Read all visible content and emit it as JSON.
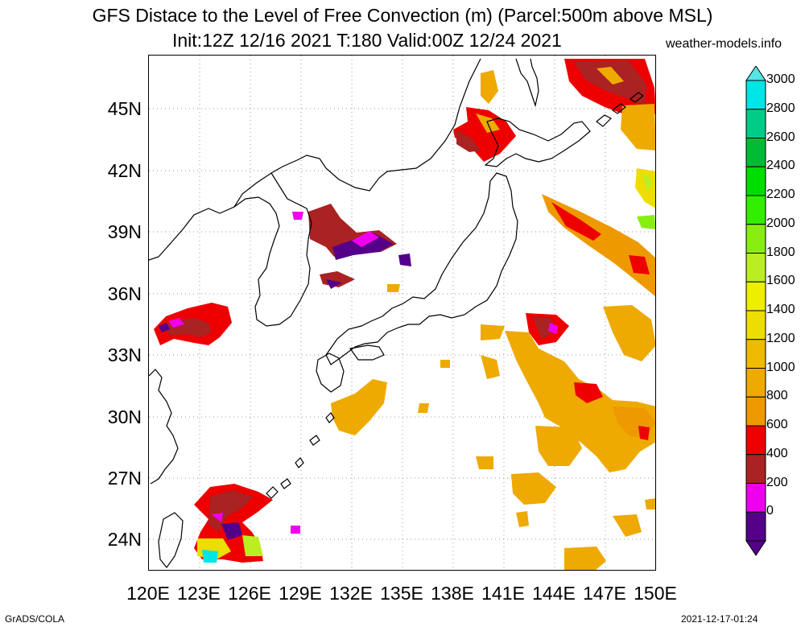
{
  "title_line1": "GFS Distace to the Level of Free Convection (m) (Parcel:500m above MSL)",
  "title_line2": "Init:12Z 12/16 2021 T:180 Valid:00Z 12/24 2021",
  "site": "weather-models.info",
  "footer_left": "GrADS/COLA",
  "footer_right": "2021-12-17-01:24",
  "lat_labels": [
    "45N",
    "42N",
    "39N",
    "36N",
    "33N",
    "30N",
    "27N",
    "24N"
  ],
  "lon_labels": [
    "120E",
    "123E",
    "126E",
    "129E",
    "132E",
    "135E",
    "138E",
    "141E",
    "144E",
    "147E",
    "150E"
  ],
  "colorbar": {
    "labels": [
      "3000",
      "2800",
      "2600",
      "2400",
      "2200",
      "2000",
      "1800",
      "1600",
      "1400",
      "1200",
      "1000",
      "800",
      "600",
      "400",
      "200",
      "0"
    ],
    "colors": [
      "#00e5e5",
      "#00cc88",
      "#00bb33",
      "#00dd00",
      "#33ee00",
      "#88ee11",
      "#bbee22",
      "#eeee00",
      "#eedd00",
      "#eebb00",
      "#eeaa00",
      "#ee9900",
      "#ee0000",
      "#aa2222",
      "#ee00ee",
      "#550088"
    ]
  }
}
